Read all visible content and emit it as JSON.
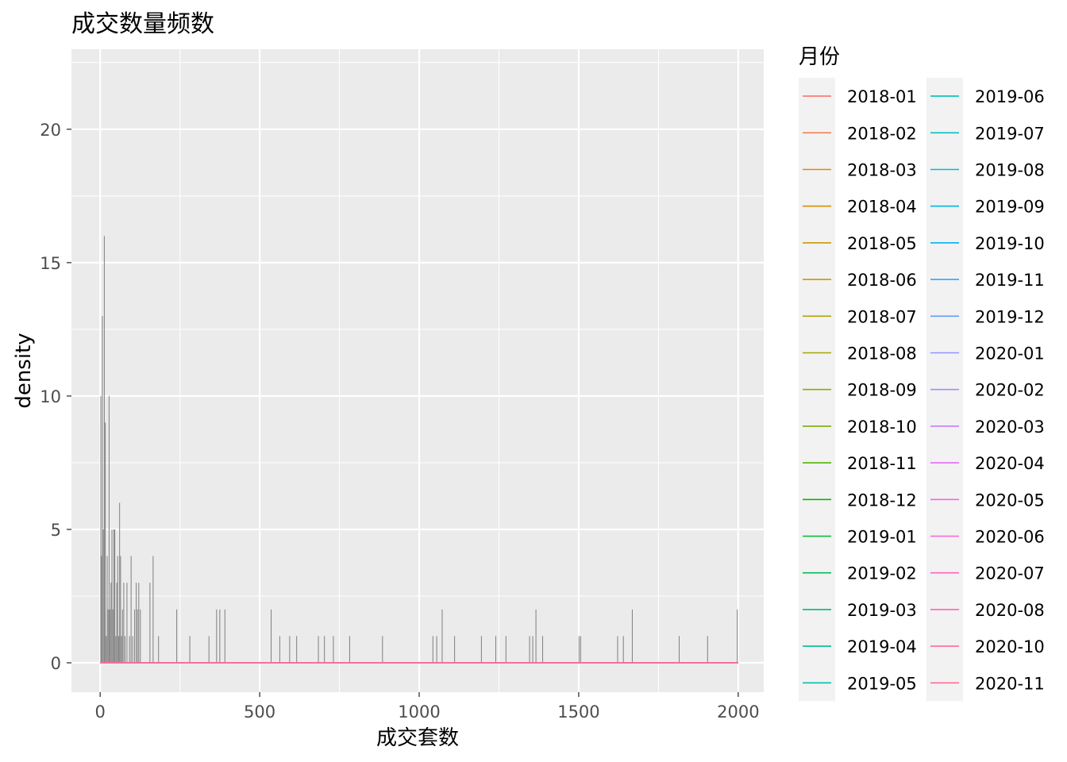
{
  "chart_data": {
    "type": "histogram",
    "title": "成交数量频数",
    "xlabel": "成交套数",
    "ylabel": "density",
    "xlim": [
      -90,
      2080
    ],
    "ylim": [
      -1.1,
      23
    ],
    "x_ticks": [
      0,
      500,
      1000,
      1500,
      2000
    ],
    "x_tick_labels": [
      "0",
      "500",
      "1000",
      "1500",
      "2000"
    ],
    "y_ticks": [
      0,
      5,
      10,
      15,
      20
    ],
    "y_tick_labels": [
      "0",
      "5",
      "10",
      "15",
      "20"
    ],
    "grid": true,
    "panel_background": "#EBEBEB",
    "bar_color": "#7F7F7F",
    "bars": [
      {
        "x": 2,
        "y": 10
      },
      {
        "x": 4,
        "y": 4
      },
      {
        "x": 7,
        "y": 13
      },
      {
        "x": 10,
        "y": 5
      },
      {
        "x": 13,
        "y": 16
      },
      {
        "x": 16,
        "y": 9
      },
      {
        "x": 19,
        "y": 1
      },
      {
        "x": 22,
        "y": 4
      },
      {
        "x": 25,
        "y": 2
      },
      {
        "x": 28,
        "y": 10
      },
      {
        "x": 31,
        "y": 2
      },
      {
        "x": 34,
        "y": 3
      },
      {
        "x": 37,
        "y": 5
      },
      {
        "x": 40,
        "y": 2
      },
      {
        "x": 43,
        "y": 5
      },
      {
        "x": 46,
        "y": 5
      },
      {
        "x": 49,
        "y": 1
      },
      {
        "x": 52,
        "y": 3
      },
      {
        "x": 55,
        "y": 4
      },
      {
        "x": 58,
        "y": 1
      },
      {
        "x": 61,
        "y": 6
      },
      {
        "x": 64,
        "y": 4
      },
      {
        "x": 67,
        "y": 1
      },
      {
        "x": 70,
        "y": 2
      },
      {
        "x": 74,
        "y": 3
      },
      {
        "x": 78,
        "y": 1
      },
      {
        "x": 84,
        "y": 3
      },
      {
        "x": 92,
        "y": 1
      },
      {
        "x": 97,
        "y": 4
      },
      {
        "x": 102,
        "y": 1
      },
      {
        "x": 108,
        "y": 2
      },
      {
        "x": 113,
        "y": 3
      },
      {
        "x": 117,
        "y": 2
      },
      {
        "x": 121,
        "y": 3
      },
      {
        "x": 126,
        "y": 2
      },
      {
        "x": 156,
        "y": 3
      },
      {
        "x": 166,
        "y": 4
      },
      {
        "x": 183,
        "y": 1
      },
      {
        "x": 240,
        "y": 2
      },
      {
        "x": 281,
        "y": 1
      },
      {
        "x": 341,
        "y": 1
      },
      {
        "x": 365,
        "y": 2
      },
      {
        "x": 375,
        "y": 2
      },
      {
        "x": 391,
        "y": 2
      },
      {
        "x": 536,
        "y": 2
      },
      {
        "x": 563,
        "y": 1
      },
      {
        "x": 594,
        "y": 1
      },
      {
        "x": 616,
        "y": 1
      },
      {
        "x": 684,
        "y": 1
      },
      {
        "x": 703,
        "y": 1
      },
      {
        "x": 731,
        "y": 1
      },
      {
        "x": 782,
        "y": 1
      },
      {
        "x": 885,
        "y": 1
      },
      {
        "x": 1043,
        "y": 1
      },
      {
        "x": 1055,
        "y": 1
      },
      {
        "x": 1072,
        "y": 2
      },
      {
        "x": 1111,
        "y": 1
      },
      {
        "x": 1195,
        "y": 1
      },
      {
        "x": 1240,
        "y": 1
      },
      {
        "x": 1272,
        "y": 1
      },
      {
        "x": 1346,
        "y": 1
      },
      {
        "x": 1356,
        "y": 1
      },
      {
        "x": 1366,
        "y": 2
      },
      {
        "x": 1387,
        "y": 1
      },
      {
        "x": 1501,
        "y": 1
      },
      {
        "x": 1506,
        "y": 1
      },
      {
        "x": 1622,
        "y": 1
      },
      {
        "x": 1640,
        "y": 1
      },
      {
        "x": 1668,
        "y": 2
      },
      {
        "x": 1815,
        "y": 1
      },
      {
        "x": 1904,
        "y": 1
      },
      {
        "x": 1997,
        "y": 2
      }
    ],
    "legend": {
      "title": "月份",
      "position": "right",
      "columns": 2,
      "entries": [
        {
          "label": "2018-01",
          "color": "#F8766D"
        },
        {
          "label": "2018-02",
          "color": "#F17F4F"
        },
        {
          "label": "2018-03",
          "color": "#E58700"
        },
        {
          "label": "2018-04",
          "color": "#D89000"
        },
        {
          "label": "2018-05",
          "color": "#C99800"
        },
        {
          "label": "2018-06",
          "color": "#C49A00"
        },
        {
          "label": "2018-07",
          "color": "#B4A000"
        },
        {
          "label": "2018-08",
          "color": "#A3A500"
        },
        {
          "label": "2018-09",
          "color": "#8EAB00"
        },
        {
          "label": "2018-10",
          "color": "#7CAE00"
        },
        {
          "label": "2018-11",
          "color": "#53B400"
        },
        {
          "label": "2018-12",
          "color": "#0CB702"
        },
        {
          "label": "2019-01",
          "color": "#00BA38"
        },
        {
          "label": "2019-02",
          "color": "#00BC59"
        },
        {
          "label": "2019-03",
          "color": "#00BE70"
        },
        {
          "label": "2019-04",
          "color": "#00BF8B"
        },
        {
          "label": "2019-05",
          "color": "#00C0AF"
        },
        {
          "label": "2019-06",
          "color": "#00C0BA"
        },
        {
          "label": "2019-07",
          "color": "#00BFC4"
        },
        {
          "label": "2019-08",
          "color": "#00BCD8"
        },
        {
          "label": "2019-09",
          "color": "#00B8E7"
        },
        {
          "label": "2019-10",
          "color": "#00B0F6"
        },
        {
          "label": "2019-11",
          "color": "#35A2FF"
        },
        {
          "label": "2019-12",
          "color": "#619CFF"
        },
        {
          "label": "2020-01",
          "color": "#9590FF"
        },
        {
          "label": "2020-02",
          "color": "#AC88FF"
        },
        {
          "label": "2020-03",
          "color": "#C77CFF"
        },
        {
          "label": "2020-04",
          "color": "#E76BF3"
        },
        {
          "label": "2020-05",
          "color": "#F564E3"
        },
        {
          "label": "2020-06",
          "color": "#FA62DB"
        },
        {
          "label": "2020-07",
          "color": "#FF62BC"
        },
        {
          "label": "2020-08",
          "color": "#FF65AC"
        },
        {
          "label": "2020-10",
          "color": "#FF6A98"
        },
        {
          "label": "2020-11",
          "color": "#FF6C91"
        }
      ]
    }
  }
}
